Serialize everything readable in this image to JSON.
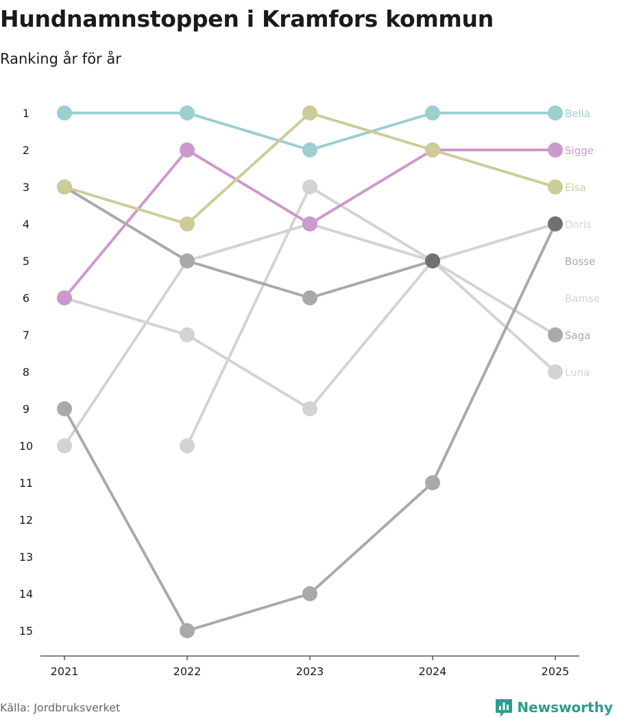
{
  "header": {
    "title": "Hundnamnstoppen i Kramfors kommun",
    "subtitle": "Ranking år för år"
  },
  "footer": {
    "source": "Källa: Jordbruksverket",
    "brand": "Newsworthy",
    "brand_icon": "newsworthy-logo-icon"
  },
  "chart_data": {
    "type": "line",
    "title": "Hundnamnstoppen i Kramfors kommun",
    "subtitle": "Ranking år för år",
    "xlabel": "",
    "ylabel": "",
    "x": [
      "2021",
      "2022",
      "2023",
      "2024",
      "2025"
    ],
    "y_ticks": [
      "1",
      "2",
      "3",
      "4",
      "5",
      "6",
      "7",
      "8",
      "9",
      "10",
      "11",
      "12",
      "13",
      "14",
      "15"
    ],
    "ylim": [
      1,
      15
    ],
    "y_reversed": true,
    "series": [
      {
        "name": "Bella",
        "color": "#9ccfcf",
        "values": [
          1,
          1,
          2,
          1,
          1
        ]
      },
      {
        "name": "Sigge",
        "color": "#cc99cc",
        "values": [
          6,
          2,
          4,
          2,
          2
        ]
      },
      {
        "name": "Elsa",
        "color": "#cccc99",
        "values": [
          3,
          4,
          1,
          2,
          3
        ]
      },
      {
        "name": "Doris",
        "color": "#a9a9a9",
        "values": [
          9,
          15,
          14,
          11,
          4
        ],
        "label_color": "#d3d3d3",
        "end_marker_color": "#707075"
      },
      {
        "name": "Bosse",
        "color": "#a9a9a9",
        "values": [
          3,
          5,
          6,
          5,
          null
        ],
        "end_marker_color": "#707075"
      },
      {
        "name": "Bamse",
        "color": "#d3d3d3",
        "values": [
          10,
          5,
          4,
          5,
          4
        ]
      },
      {
        "name": "Saga",
        "color": "#d3d3d3",
        "values": [
          6,
          7,
          9,
          5,
          7
        ],
        "label_color": "#a9a9a9",
        "end_marker_color": "#a9a9a9"
      },
      {
        "name": "Luna",
        "color": "#d3d3d3",
        "values": [
          null,
          10,
          3,
          5,
          8
        ]
      }
    ],
    "end_labels": [
      {
        "name": "Bella",
        "rank": 1,
        "color": "#9ccfcf"
      },
      {
        "name": "Sigge",
        "rank": 2,
        "color": "#cc99cc"
      },
      {
        "name": "Elsa",
        "rank": 3,
        "color": "#cccc99"
      },
      {
        "name": "Doris",
        "rank": 4,
        "color": "#d3d3d3"
      },
      {
        "name": "Bosse",
        "rank": 5,
        "color": "#a9a9a9"
      },
      {
        "name": "Bamse",
        "rank": 6,
        "color": "#d3d3d3"
      },
      {
        "name": "Saga",
        "rank": 7,
        "color": "#a9a9a9"
      },
      {
        "name": "Luna",
        "rank": 8,
        "color": "#d3d3d3"
      }
    ],
    "grid": false,
    "legend": "end-of-line labels"
  }
}
